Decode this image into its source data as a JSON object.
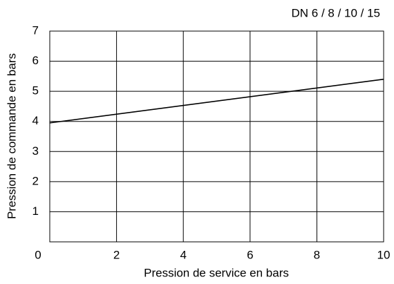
{
  "chart_data": {
    "type": "line",
    "title": "DN 6 / 8 / 10 / 15",
    "xlabel": "Pression de service en bars",
    "ylabel": "Pression de commande en bars",
    "x": [
      0,
      10
    ],
    "series": [
      {
        "color": "#000000",
        "values": [
          3.95,
          5.4
        ]
      }
    ],
    "xlim": [
      0,
      10
    ],
    "xticks": [
      0,
      2,
      4,
      6,
      8,
      10
    ],
    "ylim": [
      0,
      7
    ],
    "yticks": [
      1,
      2,
      3,
      4,
      5,
      6,
      7
    ],
    "grid": true
  }
}
